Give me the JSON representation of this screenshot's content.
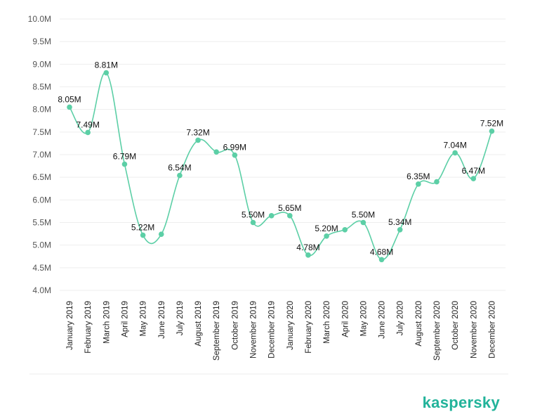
{
  "brand": {
    "logo_text": "kaspersky",
    "accent": "#5ccfa6",
    "logo_color": "#22b39a"
  },
  "chart_data": {
    "type": "line",
    "title": "",
    "xlabel": "",
    "ylabel": "",
    "categories": [
      "January 2019",
      "February 2019",
      "March 2019",
      "April 2019",
      "May 2019",
      "June 2019",
      "July 2019",
      "August 2019",
      "September 2019",
      "October 2019",
      "November 2019",
      "December 2019",
      "January 2020",
      "February 2020",
      "March 2020",
      "April 2020",
      "May 2020",
      "June 2020",
      "July 2020",
      "August 2020",
      "September 2020",
      "October 2020",
      "November 2020",
      "December 2020"
    ],
    "values": [
      8.05,
      7.49,
      8.81,
      6.79,
      5.22,
      5.24,
      6.54,
      7.32,
      7.06,
      6.99,
      5.5,
      5.65,
      5.65,
      4.78,
      5.2,
      5.34,
      5.5,
      4.68,
      5.34,
      6.35,
      6.4,
      7.04,
      6.47,
      7.52
    ],
    "labels": [
      "8.05M",
      "7.49M",
      "8.81M",
      "6.79M",
      "5.22M",
      "",
      "6.54M",
      "7.32M",
      "",
      "6.99M",
      "5.50M",
      "",
      "5.65M",
      "4.78M",
      "5.20M",
      "",
      "5.50M",
      "4.68M",
      "5.34M",
      "6.35M",
      "",
      "7.04M",
      "6.47M",
      "7.52M"
    ],
    "y_ticks": [
      "4.0M",
      "4.5M",
      "5.0M",
      "5.5M",
      "6.0M",
      "6.5M",
      "7.0M",
      "7.5M",
      "8.0M",
      "8.5M",
      "9.0M",
      "9.5M",
      "10.0M"
    ],
    "ylim": [
      4.0,
      10.0
    ],
    "grid": true,
    "series_color": "#5ccfa6"
  }
}
